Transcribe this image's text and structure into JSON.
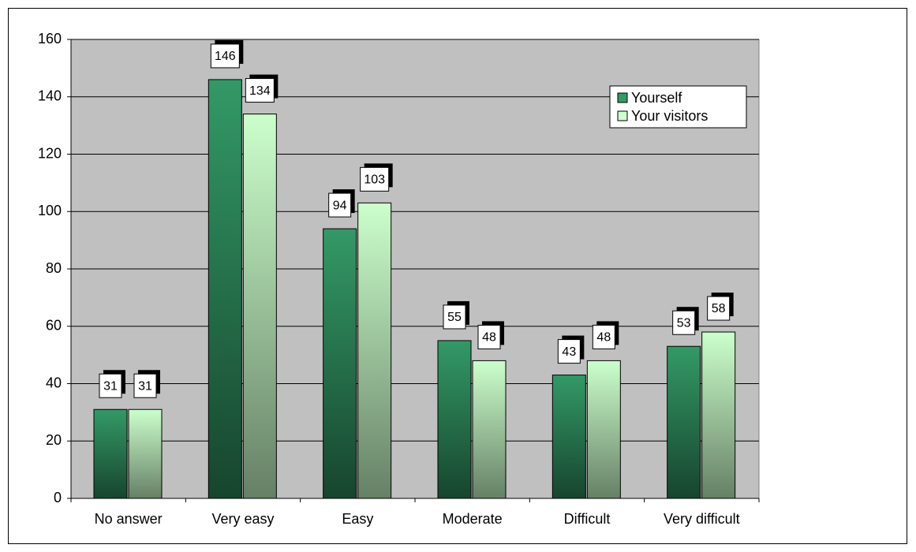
{
  "chart_data": {
    "type": "bar",
    "categories": [
      "No answer",
      "Very easy",
      "Easy",
      "Moderate",
      "Difficult",
      "Very difficult"
    ],
    "series": [
      {
        "name": "Yourself",
        "color": "#339966",
        "values": [
          31,
          146,
          94,
          55,
          43,
          53
        ]
      },
      {
        "name": "Your visitors",
        "color": "#ccffcc",
        "values": [
          31,
          134,
          103,
          48,
          48,
          58
        ]
      }
    ],
    "ylim": [
      0,
      160
    ],
    "yticks": [
      0,
      20,
      40,
      60,
      80,
      100,
      120,
      140,
      160
    ],
    "grid": true,
    "legend": "upper right",
    "data_labels": true
  }
}
